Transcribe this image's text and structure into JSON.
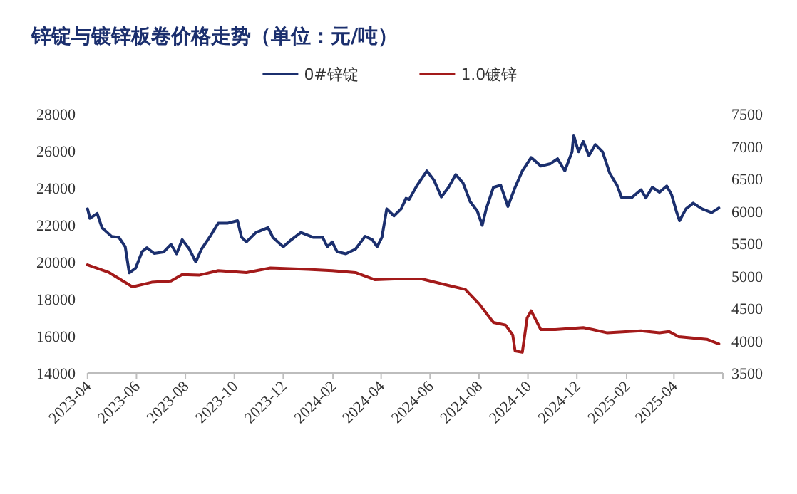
{
  "chart_data": {
    "type": "line",
    "title": "锌锭与镀锌板卷价格走势（单位：元/吨）",
    "legend": "top",
    "grid": false,
    "xlim": [
      "2023-04-01",
      "2025-06-01"
    ],
    "xticks": [
      {
        "value": "2023-04-01",
        "label": "2023-04"
      },
      {
        "value": "2023-06-01",
        "label": "2023-06"
      },
      {
        "value": "2023-08-01",
        "label": "2023-08"
      },
      {
        "value": "2023-10-01",
        "label": "2023-10"
      },
      {
        "value": "2023-12-01",
        "label": "2023-12"
      },
      {
        "value": "2024-02-01",
        "label": "2024-02"
      },
      {
        "value": "2024-04-01",
        "label": "2024-04"
      },
      {
        "value": "2024-06-01",
        "label": "2024-06"
      },
      {
        "value": "2024-08-01",
        "label": "2024-08"
      },
      {
        "value": "2024-10-01",
        "label": "2024-10"
      },
      {
        "value": "2024-12-01",
        "label": "2024-12"
      },
      {
        "value": "2025-02-01",
        "label": "2025-02"
      },
      {
        "value": "2025-04-01",
        "label": "2025-04"
      },
      {
        "value": "2025-06-01",
        "label": null
      }
    ],
    "ylim": [
      14000,
      28000
    ],
    "yticks": [
      14000,
      16000,
      18000,
      20000,
      22000,
      24000,
      26000,
      28000
    ],
    "y2lim": [
      3500,
      7500
    ],
    "y2ticks": [
      3500,
      4000,
      4500,
      5000,
      5500,
      6000,
      6500,
      7000,
      7500
    ],
    "series": [
      {
        "name": "0#锌锭",
        "color": "#1b2f6e",
        "x": [
          "2023-04-01",
          "2023-04-04",
          "2023-04-13",
          "2023-04-19",
          "2023-05-01",
          "2023-05-10",
          "2023-05-18",
          "2023-05-23",
          "2023-05-31",
          "2023-06-08",
          "2023-06-14",
          "2023-06-23",
          "2023-07-05",
          "2023-07-14",
          "2023-07-21",
          "2023-07-28",
          "2023-08-06",
          "2023-08-14",
          "2023-08-21",
          "2023-09-02",
          "2023-09-11",
          "2023-09-23",
          "2023-10-05",
          "2023-10-10",
          "2023-10-16",
          "2023-10-28",
          "2023-11-12",
          "2023-11-18",
          "2023-12-01",
          "2023-12-11",
          "2023-12-23",
          "2024-01-07",
          "2024-01-19",
          "2024-01-25",
          "2024-01-31",
          "2024-02-06",
          "2024-02-17",
          "2024-02-29",
          "2024-03-12",
          "2024-03-21",
          "2024-03-27",
          "2024-04-02",
          "2024-04-08",
          "2024-04-17",
          "2024-04-26",
          "2024-05-02",
          "2024-05-06",
          "2024-05-16",
          "2024-05-28",
          "2024-06-06",
          "2024-06-15",
          "2024-06-24",
          "2024-07-03",
          "2024-07-12",
          "2024-07-21",
          "2024-07-30",
          "2024-08-05",
          "2024-08-10",
          "2024-08-19",
          "2024-08-28",
          "2024-09-06",
          "2024-09-15",
          "2024-09-24",
          "2024-10-05",
          "2024-10-17",
          "2024-10-29",
          "2024-11-07",
          "2024-11-16",
          "2024-11-25",
          "2024-11-27",
          "2024-12-03",
          "2024-12-09",
          "2024-12-16",
          "2024-12-24",
          "2025-01-02",
          "2025-01-11",
          "2025-01-20",
          "2025-01-26",
          "2025-02-07",
          "2025-02-19",
          "2025-02-25",
          "2025-03-05",
          "2025-03-14",
          "2025-03-23",
          "2025-03-29",
          "2025-04-04",
          "2025-04-08",
          "2025-04-16",
          "2025-04-25",
          "2025-05-06",
          "2025-05-18",
          "2025-05-27"
        ],
        "values": [
          22870,
          22360,
          22620,
          21850,
          21380,
          21330,
          20820,
          19410,
          19670,
          20560,
          20770,
          20460,
          20540,
          20950,
          20440,
          21200,
          20690,
          20000,
          20690,
          21460,
          22100,
          22100,
          22230,
          21330,
          21080,
          21590,
          21850,
          21330,
          20820,
          21200,
          21590,
          21330,
          21330,
          20820,
          21080,
          20560,
          20440,
          20690,
          21380,
          21200,
          20820,
          21330,
          22870,
          22490,
          22870,
          23440,
          23380,
          24150,
          24920,
          24410,
          23510,
          24030,
          24720,
          24280,
          23260,
          22740,
          21980,
          22870,
          24030,
          24150,
          23000,
          24030,
          24920,
          25640,
          25180,
          25310,
          25570,
          24920,
          25950,
          26850,
          25950,
          26510,
          25740,
          26340,
          25950,
          24790,
          24150,
          23460,
          23460,
          23900,
          23460,
          24030,
          23770,
          24100,
          23640,
          22740,
          22230,
          22870,
          23180,
          22870,
          22670,
          22920
        ]
      },
      {
        "name": "1.0镀锌",
        "color": "#a31a1a",
        "axis": "y2",
        "x": [
          "2023-04-01",
          "2023-04-28",
          "2023-05-27",
          "2023-06-20",
          "2023-07-14",
          "2023-07-28",
          "2023-08-18",
          "2023-09-11",
          "2023-10-16",
          "2023-11-15",
          "2024-01-01",
          "2024-01-31",
          "2024-02-29",
          "2024-03-24",
          "2024-04-17",
          "2024-05-22",
          "2024-06-21",
          "2024-07-15",
          "2024-08-01",
          "2024-08-19",
          "2024-09-03",
          "2024-09-12",
          "2024-09-15",
          "2024-09-24",
          "2024-09-30",
          "2024-10-05",
          "2024-10-17",
          "2024-11-04",
          "2024-12-09",
          "2024-12-21",
          "2025-01-08",
          "2025-02-19",
          "2025-03-14",
          "2025-03-26",
          "2025-04-07",
          "2025-05-12",
          "2025-05-27"
        ],
        "values": [
          5170,
          5050,
          4830,
          4900,
          4920,
          5020,
          5010,
          5080,
          5050,
          5120,
          5100,
          5080,
          5050,
          4940,
          4950,
          4950,
          4860,
          4790,
          4570,
          4280,
          4240,
          4090,
          3840,
          3820,
          4350,
          4460,
          4170,
          4170,
          4200,
          4170,
          4120,
          4150,
          4120,
          4140,
          4060,
          4020,
          3950
        ]
      }
    ]
  }
}
